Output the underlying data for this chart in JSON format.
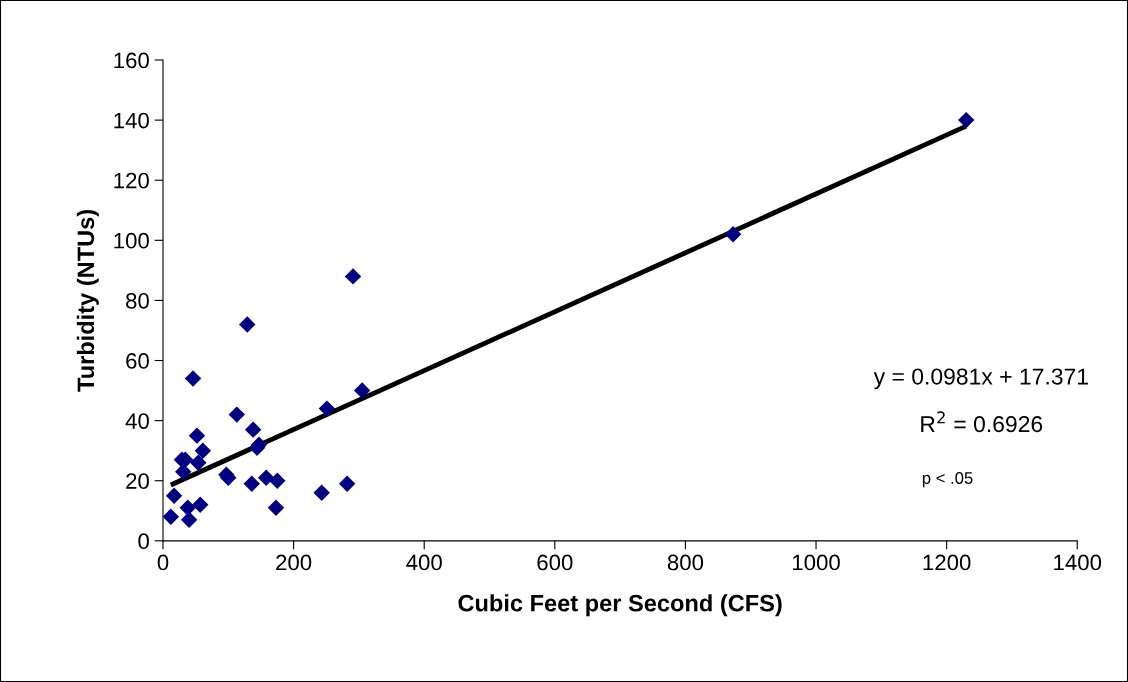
{
  "chart_data": {
    "type": "scatter",
    "xlabel": "Cubic Feet per Second (CFS)",
    "ylabel": "Turbidity (NTUs)",
    "xlim": [
      0,
      1400
    ],
    "xticks": [
      0,
      200,
      400,
      600,
      800,
      1000,
      1200,
      1400
    ],
    "ylim": [
      0,
      160
    ],
    "yticks": [
      0,
      20,
      40,
      60,
      80,
      100,
      120,
      140,
      160
    ],
    "grid": false,
    "legend": false,
    "series": [
      {
        "marker": "diamond",
        "color": "#000080",
        "x": [
          12,
          17,
          29,
          31,
          34,
          38,
          40,
          46,
          52,
          54,
          57,
          61,
          97,
          100,
          113,
          129,
          136,
          138,
          144,
          147,
          158,
          173,
          175,
          243,
          251,
          282,
          291,
          305,
          873,
          1230
        ],
        "values": [
          8,
          15,
          27,
          23,
          27,
          11,
          7,
          54,
          35,
          26,
          12,
          30,
          22,
          21,
          42,
          72,
          19,
          37,
          31,
          32,
          21,
          11,
          20,
          16,
          44,
          19,
          88,
          50,
          102,
          140
        ]
      },
      {
        "type": "line",
        "marker": "none",
        "color": "#000000",
        "line_style": "solid",
        "x": [
          12,
          1230
        ],
        "values": [
          18.6,
          138
        ]
      }
    ],
    "annotations": [
      "y = 0.0981x + 17.371",
      "R$^{2}$ = 0.6926",
      "p < .05"
    ]
  }
}
